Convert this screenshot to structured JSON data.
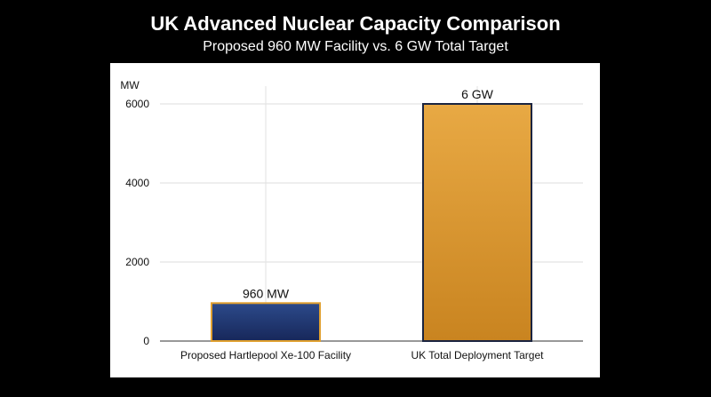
{
  "header": {
    "title": "UK Advanced Nuclear Capacity Comparison",
    "subtitle": "Proposed 960 MW Facility vs. 6 GW Total Target"
  },
  "chart_data": {
    "type": "bar",
    "title": "UK Advanced Nuclear Capacity Comparison",
    "subtitle": "Proposed 960 MW Facility vs. 6 GW Total Target",
    "xlabel": "",
    "ylabel": "MW",
    "ylim": [
      0,
      6000
    ],
    "yticks": [
      0,
      2000,
      4000,
      6000
    ],
    "categories": [
      "Proposed Hartlepool Xe-100 Facility",
      "UK Total Deployment Target"
    ],
    "values": [
      960,
      6000
    ],
    "value_labels": [
      "960 MW",
      "6 GW"
    ],
    "bar_colors": [
      {
        "top": "#2c4a8a",
        "bottom": "#17275a",
        "border": "#e0a030"
      },
      {
        "top": "#e8a944",
        "bottom": "#c98420",
        "border": "#1a2440"
      }
    ],
    "grid": true,
    "legend": "none"
  }
}
